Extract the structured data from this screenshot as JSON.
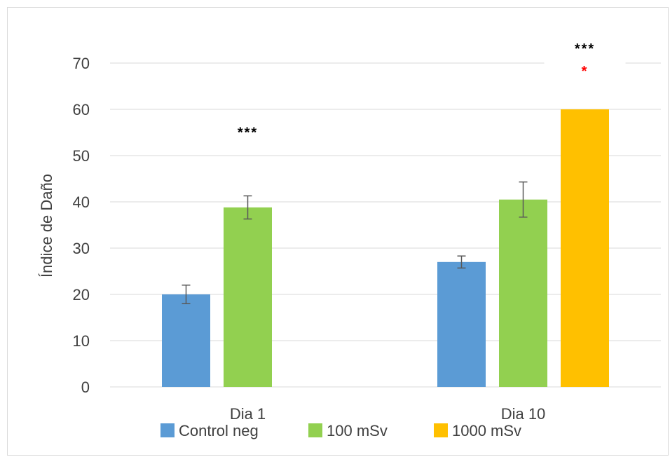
{
  "chart_data": {
    "type": "bar",
    "title": "",
    "xlabel": "",
    "ylabel": "Índice de Daño",
    "ylim": [
      0,
      70
    ],
    "yticks": [
      0,
      10,
      20,
      30,
      40,
      50,
      60,
      70
    ],
    "grid": true,
    "legend_position": "bottom",
    "categories": [
      "Dia 1",
      "Dia 10"
    ],
    "series": [
      {
        "name": "Control neg",
        "color": "#5b9bd5",
        "values": [
          20,
          27
        ],
        "errors": [
          2,
          1.3
        ]
      },
      {
        "name": "100 mSv",
        "color": "#92d050",
        "values": [
          38.8,
          40.5
        ],
        "errors": [
          2.5,
          3.8
        ]
      },
      {
        "name": "1000 mSv",
        "color": "#ffc000",
        "values": [
          null,
          60
        ],
        "errors": [
          null,
          null
        ]
      }
    ],
    "annotations": [
      {
        "category": "Dia 1",
        "series": "100 mSv",
        "text": "***",
        "color": "#000000"
      },
      {
        "category": "Dia 10",
        "series": "1000 mSv",
        "text": "***",
        "color": "#000000"
      },
      {
        "category": "Dia 10",
        "series": "1000 mSv",
        "text": "*",
        "color": "#ff0000"
      }
    ]
  }
}
